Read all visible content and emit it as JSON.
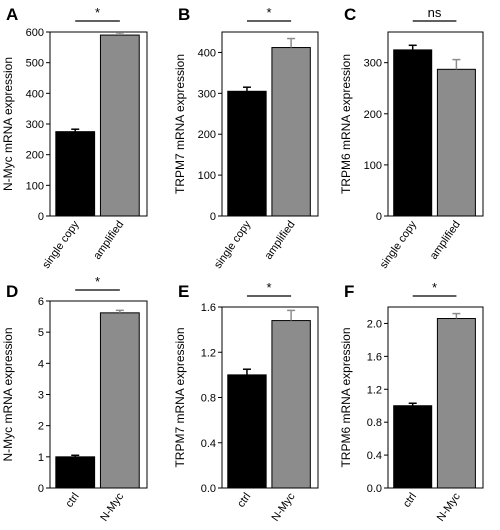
{
  "figure": {
    "bar_colors": {
      "first": "#000000",
      "second": "#8c8c8c"
    }
  },
  "chart_data": [
    {
      "type": "bar",
      "panel": "A",
      "ylabel": "N-Myc mRNA expression",
      "ylim": [
        0,
        600
      ],
      "yticks": [
        "0",
        "100",
        "200",
        "300",
        "400",
        "500",
        "600"
      ],
      "categories": [
        "single copy",
        "amplified"
      ],
      "values": [
        275,
        590
      ],
      "errors": [
        8,
        7
      ],
      "significance": "*",
      "rotated_labels": true
    },
    {
      "type": "bar",
      "panel": "B",
      "ylabel": "TRPM7 mRNA expression",
      "ylim": [
        0,
        450
      ],
      "yticks": [
        "0",
        "100",
        "200",
        "300",
        "400"
      ],
      "categories": [
        "single copy",
        "amplified"
      ],
      "values": [
        305,
        412
      ],
      "errors": [
        10,
        22
      ],
      "significance": "*",
      "rotated_labels": true
    },
    {
      "type": "bar",
      "panel": "C",
      "ylabel": "TRPM6 mRNA expression",
      "ylim": [
        0,
        360
      ],
      "yticks": [
        "0",
        "100",
        "200",
        "300"
      ],
      "categories": [
        "single copy",
        "amplified"
      ],
      "values": [
        325,
        287
      ],
      "errors": [
        9,
        19
      ],
      "significance": "ns",
      "rotated_labels": true
    },
    {
      "type": "bar",
      "panel": "D",
      "ylabel": "N-Myc mRNA expression",
      "ylim": [
        0,
        6
      ],
      "yticks": [
        "0",
        "1",
        "2",
        "3",
        "4",
        "5",
        "6"
      ],
      "categories": [
        "ctrl",
        "N-Myc"
      ],
      "values": [
        1.0,
        5.62
      ],
      "errors": [
        0.05,
        0.08
      ],
      "significance": "*",
      "rotated_labels": true
    },
    {
      "type": "bar",
      "panel": "E",
      "ylabel": "TRPM7 mRNA expression",
      "ylim": [
        0,
        1.6
      ],
      "yticks": [
        "0.0",
        "0.4",
        "0.8",
        "1.2",
        "1.6"
      ],
      "categories": [
        "ctrl",
        "N-Myc"
      ],
      "values": [
        1.0,
        1.48
      ],
      "errors": [
        0.05,
        0.09
      ],
      "significance": "*",
      "rotated_labels": true
    },
    {
      "type": "bar",
      "panel": "F",
      "ylabel": "TRPM6 mRNA expression",
      "ylim": [
        0,
        2.2
      ],
      "yticks": [
        "0.0",
        "0.4",
        "0.8",
        "1.2",
        "1.6",
        "2.0"
      ],
      "categories": [
        "ctrl",
        "N-Myc"
      ],
      "values": [
        1.0,
        2.06
      ],
      "errors": [
        0.03,
        0.06
      ],
      "significance": "*",
      "rotated_labels": true
    }
  ]
}
